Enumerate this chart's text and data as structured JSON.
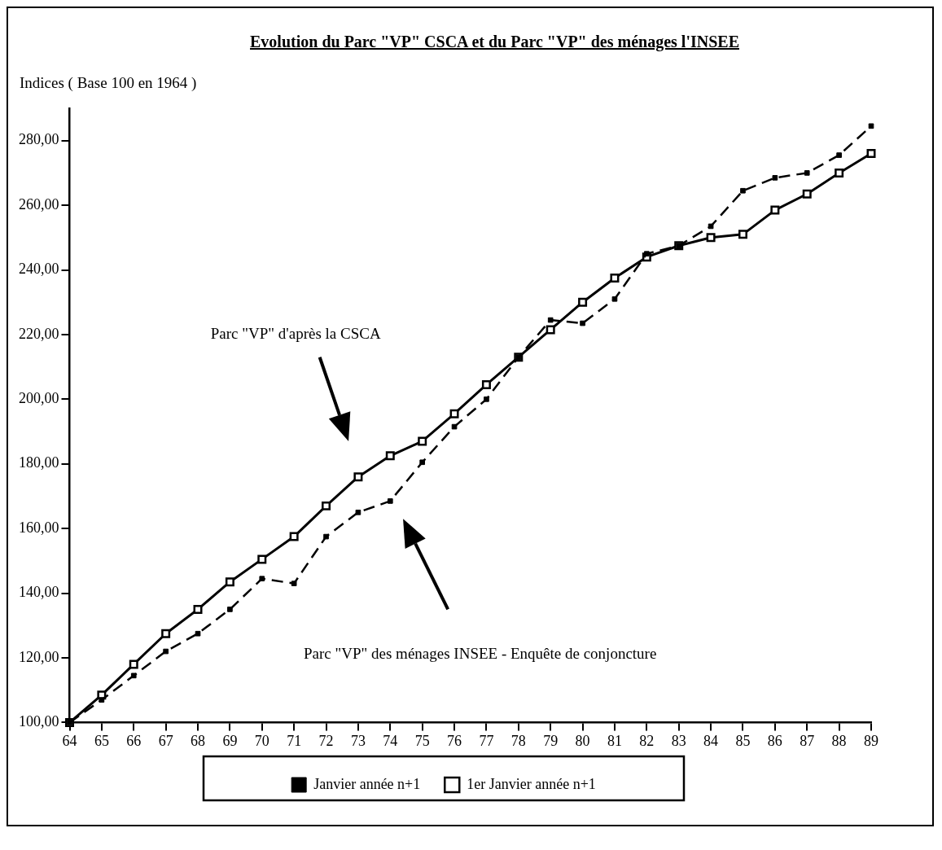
{
  "chart_data": {
    "type": "line",
    "title": "Evolution du Parc \"VP\" CSCA et du Parc \"VP\" des ménages l'INSEE",
    "ylabel": "Indices ( Base 100 en 1964 )",
    "categories": [
      "64",
      "65",
      "66",
      "67",
      "68",
      "69",
      "70",
      "71",
      "72",
      "73",
      "74",
      "75",
      "76",
      "77",
      "78",
      "79",
      "80",
      "81",
      "82",
      "83",
      "84",
      "85",
      "86",
      "87",
      "88",
      "89"
    ],
    "series": [
      {
        "name": "Janvier année n+1",
        "color": "#000000",
        "line_style": "dashed",
        "values": [
          100,
          107,
          114.5,
          122,
          127.5,
          135,
          144.5,
          143,
          157.5,
          165,
          168.5,
          180.5,
          191.5,
          200,
          213,
          224.5,
          223.5,
          231,
          245,
          247.5,
          253.5,
          264.5,
          268.5,
          270,
          275.5,
          284.5
        ]
      },
      {
        "name": "1er Janvier année n+1",
        "color": "#000000",
        "line_style": "solid",
        "values": [
          100,
          108.5,
          118,
          127.5,
          135,
          143.5,
          150.5,
          157.5,
          167,
          176,
          182.5,
          187,
          195.5,
          204.5,
          213,
          221.5,
          230,
          237.5,
          244,
          247.5,
          250,
          251,
          258.5,
          263.5,
          270,
          276
        ]
      }
    ],
    "ylim": [
      100,
      290
    ],
    "yticks": [
      {
        "value": 100,
        "label": "100,00"
      },
      {
        "value": 120,
        "label": "120,00"
      },
      {
        "value": 140,
        "label": "140,00"
      },
      {
        "value": 160,
        "label": "160,00"
      },
      {
        "value": 180,
        "label": "180,00"
      },
      {
        "value": 200,
        "label": "200,00"
      },
      {
        "value": 220,
        "label": "220,00"
      },
      {
        "value": 240,
        "label": "240,00"
      },
      {
        "value": 260,
        "label": "260,00"
      },
      {
        "value": 280,
        "label": "280,00"
      }
    ],
    "marker": "square",
    "grid": false,
    "legend": "bottom",
    "annotations": [
      "Parc \"VP\" d'après la CSCA",
      "Parc \"VP\" des ménages INSEE - Enquête de conjoncture"
    ]
  }
}
